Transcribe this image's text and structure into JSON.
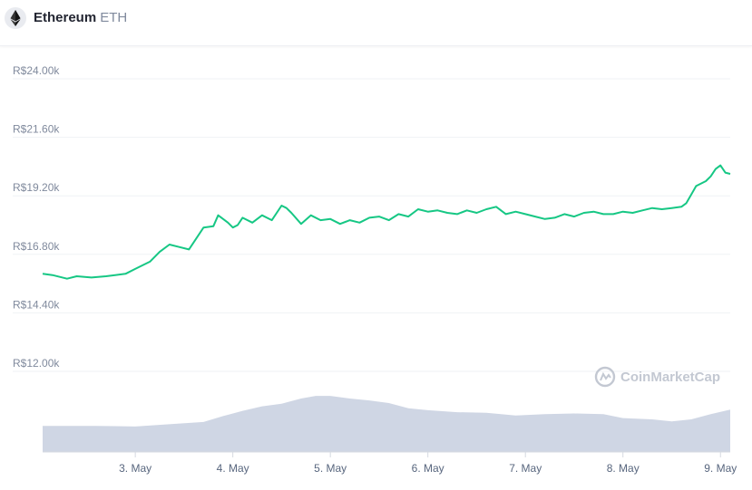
{
  "header": {
    "coin_name": "Ethereum",
    "coin_symbol": "ETH",
    "icon": "ethereum-icon"
  },
  "watermark": {
    "text": "CoinMarketCap",
    "icon": "coinmarketcap-logo-icon"
  },
  "colors": {
    "price_line": "#16c784",
    "volume_fill": "#cfd6e4",
    "grid": "#eff2f5",
    "watermark": "#c3c8d2"
  },
  "chart_data": {
    "type": "line",
    "y_ticks": [
      "R$24.00k",
      "R$21.60k",
      "R$19.20k",
      "R$16.80k",
      "R$14.40k",
      "R$12.00k"
    ],
    "y_tick_values": [
      24000,
      21600,
      19200,
      16800,
      14400,
      12000
    ],
    "ylim": [
      12000,
      24000
    ],
    "x_ticks": [
      "3. May",
      "4. May",
      "5. May",
      "6. May",
      "7. May",
      "8. May",
      "9. May"
    ],
    "x_tick_values": [
      3,
      4,
      5,
      6,
      7,
      8,
      9
    ],
    "xlim": [
      2.05,
      9.1
    ],
    "grid": true,
    "series": [
      {
        "kind": "price",
        "x": [
          2.05,
          2.15,
          2.3,
          2.4,
          2.55,
          2.7,
          2.9,
          3.0,
          3.15,
          3.25,
          3.35,
          3.45,
          3.55,
          3.6,
          3.7,
          3.8,
          3.85,
          3.95,
          4.0,
          4.05,
          4.1,
          4.2,
          4.3,
          4.4,
          4.5,
          4.55,
          4.6,
          4.7,
          4.8,
          4.9,
          5.0,
          5.1,
          5.2,
          5.3,
          5.4,
          5.5,
          5.6,
          5.7,
          5.8,
          5.9,
          6.0,
          6.1,
          6.2,
          6.3,
          6.4,
          6.5,
          6.6,
          6.7,
          6.8,
          6.9,
          7.0,
          7.1,
          7.2,
          7.3,
          7.4,
          7.5,
          7.6,
          7.7,
          7.8,
          7.9,
          8.0,
          8.1,
          8.2,
          8.3,
          8.4,
          8.5,
          8.6,
          8.65,
          8.75,
          8.85,
          8.9,
          8.95,
          9.0,
          9.05,
          9.1
        ],
        "y": [
          16000,
          15950,
          15800,
          15900,
          15850,
          15900,
          16000,
          16200,
          16500,
          16900,
          17200,
          17100,
          17000,
          17300,
          17900,
          17950,
          18400,
          18100,
          17900,
          18000,
          18300,
          18100,
          18400,
          18200,
          18800,
          18700,
          18500,
          18050,
          18400,
          18200,
          18250,
          18050,
          18200,
          18100,
          18300,
          18350,
          18200,
          18450,
          18350,
          18650,
          18550,
          18600,
          18500,
          18450,
          18600,
          18500,
          18650,
          18750,
          18450,
          18550,
          18450,
          18350,
          18250,
          18300,
          18450,
          18350,
          18500,
          18550,
          18450,
          18450,
          18550,
          18500,
          18600,
          18700,
          18650,
          18700,
          18750,
          18900,
          19600,
          19800,
          20000,
          20300,
          20450,
          20150,
          20100
        ]
      },
      {
        "kind": "volume",
        "x": [
          2.05,
          2.3,
          2.6,
          3.0,
          3.4,
          3.7,
          3.9,
          4.1,
          4.3,
          4.5,
          4.7,
          4.85,
          5.0,
          5.2,
          5.4,
          5.6,
          5.8,
          6.0,
          6.3,
          6.6,
          6.9,
          7.2,
          7.5,
          7.8,
          8.0,
          8.3,
          8.5,
          8.7,
          8.9,
          9.1
        ],
        "y": [
          0.4,
          0.4,
          0.4,
          0.39,
          0.43,
          0.46,
          0.55,
          0.63,
          0.7,
          0.74,
          0.82,
          0.86,
          0.86,
          0.82,
          0.79,
          0.75,
          0.67,
          0.64,
          0.61,
          0.6,
          0.56,
          0.58,
          0.59,
          0.58,
          0.52,
          0.5,
          0.47,
          0.5,
          0.58,
          0.65
        ]
      }
    ]
  }
}
